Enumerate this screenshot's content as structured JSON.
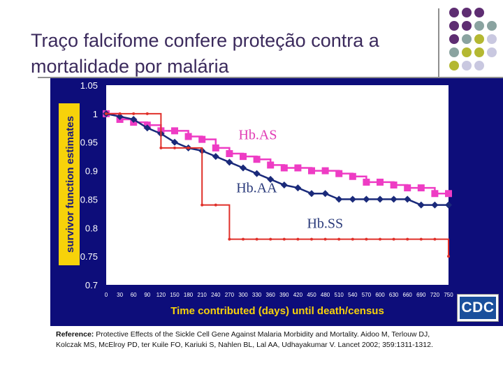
{
  "slide": {
    "title": "Traço falcifome confere proteção contra a mortalidade por malária"
  },
  "logo": {
    "text": "CDC"
  },
  "reference": {
    "label": "Reference:",
    "text": "Protective Effects of the Sickle Cell Gene Against Malaria Morbidity and Mortality. Aidoo M, Terlouw DJ, Kolczak MS, McElroy PD, ter Kuile FO, Kariuki S, Nahlen BL, Lal AA, Udhayakumar V. Lancet 2002; 359:1311-1312."
  },
  "colors": {
    "background": "#0d0d7a",
    "plot_area": "#ffffff",
    "axis_text": "#ffffff",
    "ylabel_box": "#f7d20a",
    "ylabel_text": "#1a1a7a",
    "xlabel_text": "#f7d20a",
    "HbAS": "#ee3cc4",
    "HbAA": "#1a2a7a",
    "HbSS": "#e0302a",
    "label_HbAS": "#e03cb4",
    "label_HbAA": "#2a3a7a",
    "label_HbSS": "#2a3a7a",
    "dot_purple": "#5e2d72",
    "dot_teal": "#8aa3a0",
    "dot_olive": "#b4b832",
    "dot_lavender": "#c9c8e0"
  },
  "chart_data": {
    "type": "line",
    "title": "",
    "xlabel": "Time contributed (days) until death/census",
    "ylabel": "survivor function estimates",
    "xlim": [
      0,
      750
    ],
    "ylim": [
      0.7,
      1.05
    ],
    "grid": false,
    "y_ticks": [
      1.05,
      1,
      0.95,
      0.9,
      0.85,
      0.8,
      0.75,
      0.7
    ],
    "y_tick_labels": [
      "1.05",
      "1",
      "0.95",
      "0.9",
      "0.85",
      "0.8",
      "0.75",
      "0.7"
    ],
    "x_ticks": [
      0,
      30,
      60,
      90,
      120,
      150,
      180,
      210,
      240,
      270,
      300,
      330,
      360,
      390,
      420,
      450,
      480,
      510,
      540,
      570,
      600,
      630,
      660,
      690,
      720,
      750
    ],
    "x_tick_labels": [
      "0",
      "30",
      "60",
      "90",
      "120",
      "150",
      "180",
      "210",
      "240",
      "270",
      "300",
      "330",
      "360",
      "390",
      "420",
      "450",
      "480",
      "510",
      "540",
      "570",
      "600",
      "630",
      "660",
      "690",
      "720",
      "750"
    ],
    "series": [
      {
        "name": "Hb.AS",
        "step": true,
        "marker": "square",
        "x": [
          0,
          30,
          60,
          90,
          120,
          150,
          180,
          210,
          240,
          270,
          300,
          330,
          360,
          390,
          420,
          450,
          480,
          510,
          540,
          570,
          600,
          630,
          660,
          690,
          720,
          750
        ],
        "y": [
          1.0,
          0.99,
          0.985,
          0.98,
          0.97,
          0.97,
          0.96,
          0.955,
          0.94,
          0.93,
          0.925,
          0.92,
          0.91,
          0.905,
          0.905,
          0.9,
          0.9,
          0.895,
          0.89,
          0.88,
          0.88,
          0.875,
          0.87,
          0.87,
          0.86,
          0.86
        ]
      },
      {
        "name": "Hb.AA",
        "step": false,
        "marker": "diamond",
        "x": [
          0,
          30,
          60,
          90,
          120,
          150,
          180,
          210,
          240,
          270,
          300,
          330,
          360,
          390,
          420,
          450,
          480,
          510,
          540,
          570,
          600,
          630,
          660,
          690,
          720,
          750
        ],
        "y": [
          1.0,
          0.995,
          0.99,
          0.975,
          0.965,
          0.95,
          0.94,
          0.935,
          0.925,
          0.915,
          0.905,
          0.895,
          0.885,
          0.875,
          0.87,
          0.86,
          0.86,
          0.85,
          0.85,
          0.85,
          0.85,
          0.85,
          0.85,
          0.84,
          0.84,
          0.84
        ]
      },
      {
        "name": "Hb.SS",
        "step": true,
        "marker": "dot",
        "x": [
          0,
          30,
          60,
          90,
          120,
          150,
          180,
          210,
          240,
          270,
          300,
          330,
          360,
          390,
          420,
          450,
          480,
          510,
          540,
          570,
          600,
          630,
          660,
          690,
          720,
          750
        ],
        "y": [
          1.0,
          1.0,
          1.0,
          1.0,
          0.94,
          0.94,
          0.94,
          0.84,
          0.84,
          0.78,
          0.78,
          0.78,
          0.78,
          0.78,
          0.78,
          0.78,
          0.78,
          0.78,
          0.78,
          0.78,
          0.78,
          0.78,
          0.78,
          0.78,
          0.78,
          0.75
        ]
      }
    ],
    "annotations": [
      {
        "text": "Hb.AS",
        "series": "Hb.AS",
        "x": 290,
        "y": 0.955
      },
      {
        "text": "Hb.AA",
        "series": "Hb.AA",
        "x": 285,
        "y": 0.862
      },
      {
        "text": "Hb.SS",
        "series": "Hb.SS",
        "x": 440,
        "y": 0.8
      }
    ]
  }
}
